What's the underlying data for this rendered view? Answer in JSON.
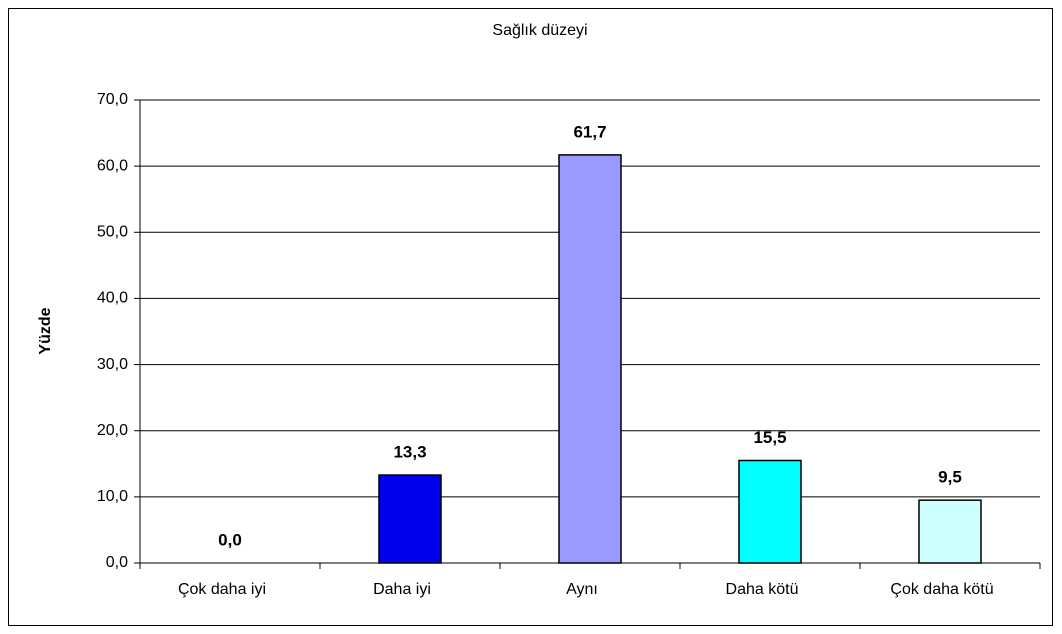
{
  "chart_data": {
    "type": "bar",
    "title": "Sağlık düzeyi",
    "y_label": "Yüzde",
    "categories": [
      "Çok daha iyi",
      "Daha iyi",
      "Aynı",
      "Daha kötü",
      "Çok daha kötü"
    ],
    "values": [
      0,
      13.3,
      61.7,
      15.5,
      9.5
    ],
    "value_labels": [
      "0,0",
      "13,3",
      "61,7",
      "15,5",
      "9,5"
    ],
    "colors": [
      "#000080",
      "#0000ee",
      "#9999ff",
      "#00ffff",
      "#ccffff"
    ],
    "ylim": [
      0,
      70
    ],
    "yticks": [
      {
        "value": 0,
        "label": "0,0"
      },
      {
        "value": 10,
        "label": "10,0"
      },
      {
        "value": 20,
        "label": "20,0"
      },
      {
        "value": 30,
        "label": "30,0"
      },
      {
        "value": 40,
        "label": "40,0"
      },
      {
        "value": 50,
        "label": "50,0"
      },
      {
        "value": 60,
        "label": "60,0"
      },
      {
        "value": 70,
        "label": "70,0"
      }
    ],
    "grid": true
  }
}
